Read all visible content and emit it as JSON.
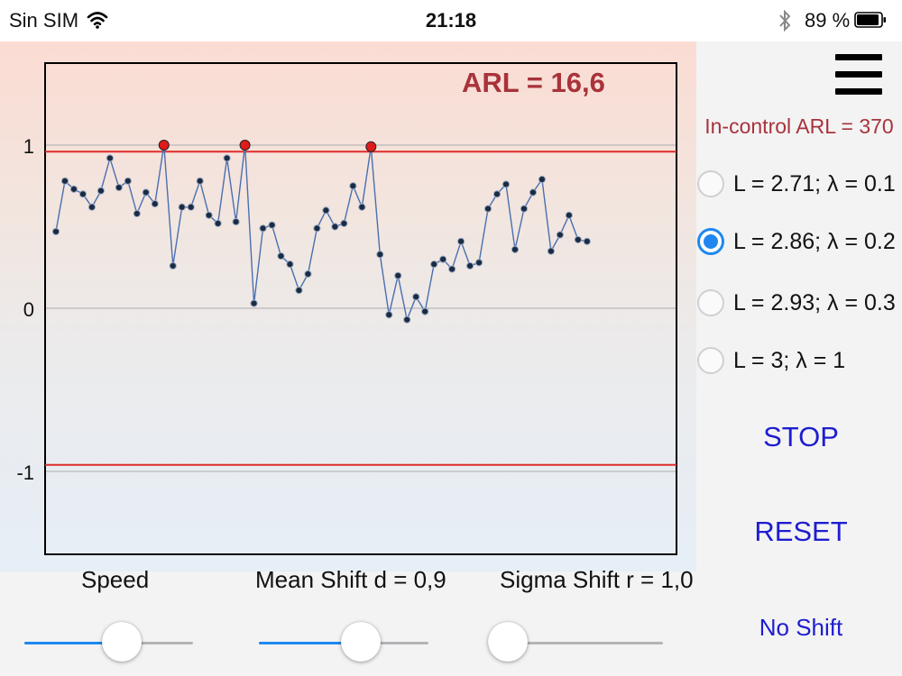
{
  "status_bar": {
    "carrier": "Sin SIM",
    "time": "21:18",
    "battery": "89 %",
    "wifi_icon": "wifi-icon",
    "bluetooth_icon": "bluetooth-icon",
    "battery_icon": "battery-icon"
  },
  "chart_data": {
    "type": "line",
    "title": "ARL = 16,6",
    "xlabel": "",
    "ylabel": "",
    "ylim": [
      -1.5,
      1.5
    ],
    "yticks": [
      "1",
      "0",
      "-1"
    ],
    "ytick_values": [
      1,
      0,
      -1
    ],
    "control_limits": {
      "upper": 0.96,
      "lower": -0.96
    },
    "series": [
      {
        "values": [
          0.47,
          0.78,
          0.73,
          0.7,
          0.62,
          0.72,
          0.92,
          0.74,
          0.78,
          0.58,
          0.71,
          0.64,
          1.0,
          0.26,
          0.62,
          0.62,
          0.78,
          0.57,
          0.52,
          0.92,
          0.53,
          1.0,
          0.03,
          0.49,
          0.51,
          0.32,
          0.27,
          0.11,
          0.21,
          0.49,
          0.6,
          0.5,
          0.52,
          0.75,
          0.62,
          0.99,
          0.33,
          -0.04,
          0.2,
          -0.07,
          0.07,
          -0.02,
          0.27,
          0.3,
          0.24,
          0.41,
          0.26,
          0.28,
          0.61,
          0.7,
          0.76,
          0.36,
          0.61,
          0.71,
          0.79,
          0.35,
          0.45,
          0.57,
          0.42,
          0.41
        ]
      }
    ],
    "out_of_control_color": "#e01b1b",
    "point_color": "#1a2b44",
    "line_color": "#4a6fb0",
    "limit_color": "#e02a2a",
    "title_color": "#a8333b",
    "grid": true
  },
  "sidebar": {
    "menu_icon": "hamburger-menu-icon",
    "in_control_arl": "In-control ARL = 370",
    "options": [
      {
        "label": "L = 2.71; λ = 0.1",
        "selected": false
      },
      {
        "label": "L = 2.86; λ = 0.2",
        "selected": true
      },
      {
        "label": "L = 2.93; λ = 0.3",
        "selected": false
      },
      {
        "label": "L = 3; λ = 1",
        "selected": false
      }
    ],
    "stop_label": "STOP",
    "reset_label": "RESET",
    "no_shift_label": "No Shift"
  },
  "controls": {
    "speed": {
      "label": "Speed",
      "value": 0.58
    },
    "mean_shift": {
      "label": "Mean Shift d = 0,9",
      "value": 0.6
    },
    "sigma_shift": {
      "label": "Sigma Shift r = 1,0",
      "value": 0.0
    }
  },
  "colors": {
    "accent": "#1e88f0",
    "button_text": "#1d1dd0",
    "in_control_text": "#a8333b"
  }
}
